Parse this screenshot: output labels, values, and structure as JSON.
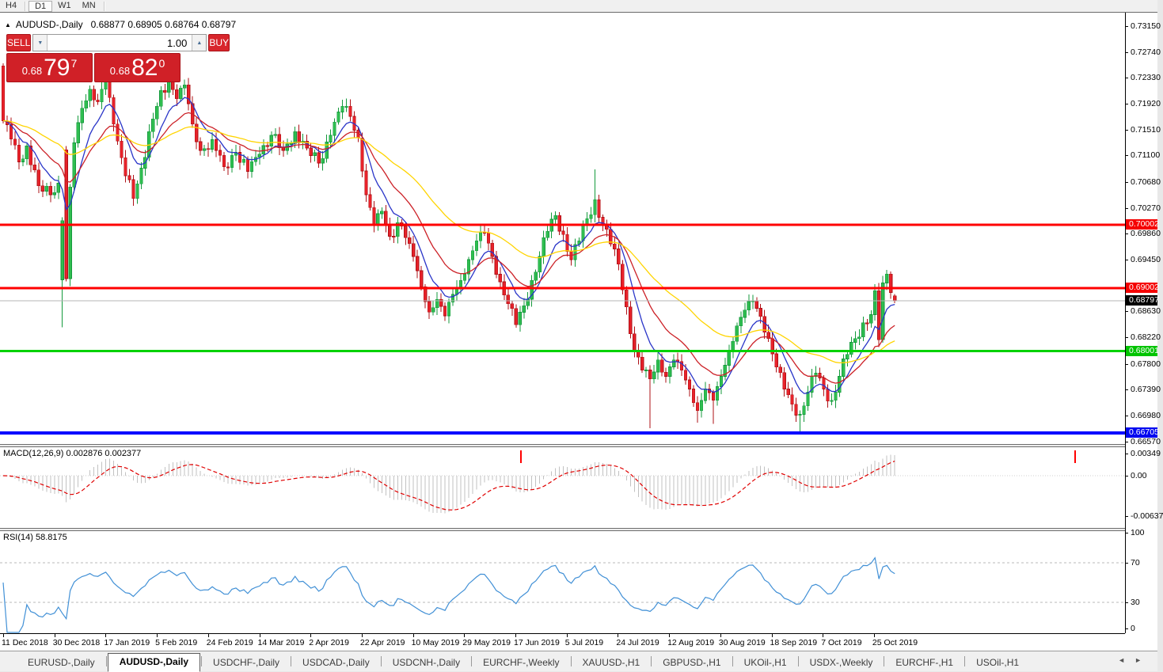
{
  "toolbar": {
    "timeframes": [
      "H4",
      "D1",
      "W1",
      "MN"
    ],
    "active_timeframe": "D1"
  },
  "icons": {
    "collapse": "▲",
    "spinner_down": "▼",
    "spinner_up": "▲",
    "tab_scroll_left": "◄",
    "tab_scroll_right": "►"
  },
  "chart": {
    "title_symbol": "AUDUSD-,Daily",
    "title_ohlc": "0.68877 0.68905 0.68764 0.68797",
    "trade_panel": {
      "sell_label": "SELL",
      "buy_label": "BUY",
      "volume": "1.00",
      "sell_price": {
        "small": "0.68",
        "big": "79",
        "sup": "7"
      },
      "buy_price": {
        "small": "0.68",
        "big": "82",
        "sup": "0"
      }
    },
    "levels": [
      {
        "price": 0.70002,
        "label": "0.70002",
        "color": "#ff0000",
        "box": "#f50000",
        "width": 3
      },
      {
        "price": 0.69002,
        "label": "0.69002",
        "color": "#ff0000",
        "box": "#f50000",
        "width": 3
      },
      {
        "price": 0.68797,
        "label": "0.68797",
        "color": "#b5b5b5",
        "box": "#000000",
        "width": 1
      },
      {
        "price": 0.68001,
        "label": "0.68001",
        "color": "#00d200",
        "box": "#00c400",
        "width": 3
      },
      {
        "price": 0.66705,
        "label": "0.66705",
        "color": "#0000ff",
        "box": "#0008f0",
        "width": 4
      }
    ],
    "price_axis_labels": [
      "0.73150",
      "0.72740",
      "0.72330",
      "0.71920",
      "0.71510",
      "0.71100",
      "0.70680",
      "0.70270",
      "0.69860",
      "0.69450",
      "0.68630",
      "0.68220",
      "0.67800",
      "0.67390",
      "0.66980",
      "0.66570"
    ],
    "date_axis_labels": [
      "11 Dec 2018",
      "30 Dec 2018",
      "17 Jan 2019",
      "5 Feb 2019",
      "24 Feb 2019",
      "14 Mar 2019",
      "2 Apr 2019",
      "22 Apr 2019",
      "10 May 2019",
      "29 May 2019",
      "17 Jun 2019",
      "5 Jul 2019",
      "24 Jul 2019",
      "12 Aug 2019",
      "30 Aug 2019",
      "18 Sep 2019",
      "7 Oct 2019",
      "25 Oct 2019"
    ]
  },
  "macd": {
    "label": "MACD(12,26,9) 0.002876 0.002377",
    "axis_labels": [
      "0.00349",
      "0.00",
      "-0.00637"
    ],
    "marks_x": [
      658,
      1358
    ]
  },
  "rsi": {
    "label": "RSI(14) 58.8175",
    "axis_labels": [
      "100",
      "70",
      "30",
      "0"
    ]
  },
  "tabs": {
    "items": [
      "EURUSD-,Daily",
      "AUDUSD-,Daily",
      "USDCHF-,Daily",
      "USDCAD-,Daily",
      "USDCNH-,Daily",
      "EURCHF-,Weekly",
      "XAUUSD-,H1",
      "GBPUSD-,H1",
      "UKOil-,H1",
      "USDX-,Weekly",
      "EURCHF-,H1",
      "USOil-,H1"
    ],
    "active": "AUDUSD-,Daily"
  },
  "colors": {
    "bull": "#2fbe50",
    "bull_border": "#149a3c",
    "bear": "#e8222a",
    "bear_border": "#ae1016",
    "ma_fast": "#2a35c8",
    "ma_mid": "#cc2127",
    "ma_slow": "#ffd400",
    "macd_hist": "#c2c2c2",
    "macd_signal": "#e00000",
    "macd_mark": "#ff0000",
    "rsi_line": "#4190d6",
    "rsi_level": "#b9b9b9",
    "current_price_line": "#b5b5b5"
  },
  "chart_data": {
    "type": "candlestick",
    "symbol": "AUDUSD",
    "timeframe": "Daily",
    "candle_count": 227,
    "visible_price_range": [
      0.6657,
      0.7315
    ],
    "last_candle": {
      "open": 0.68877,
      "high": 0.68905,
      "low": 0.68764,
      "close": 0.68797
    },
    "close_anchors": [
      [
        0,
        0.7165
      ],
      [
        2,
        0.7136
      ],
      [
        4,
        0.71
      ],
      [
        6,
        0.7125
      ],
      [
        9,
        0.7062
      ],
      [
        12,
        0.7048
      ],
      [
        14,
        0.7066
      ],
      [
        15,
        0.7007
      ],
      [
        16,
        0.6915
      ],
      [
        17,
        0.706
      ],
      [
        18,
        0.713
      ],
      [
        19,
        0.7162
      ],
      [
        20,
        0.7185
      ],
      [
        22,
        0.7215
      ],
      [
        24,
        0.7195
      ],
      [
        26,
        0.7232
      ],
      [
        28,
        0.716
      ],
      [
        31,
        0.7078
      ],
      [
        33,
        0.7042
      ],
      [
        35,
        0.709
      ],
      [
        37,
        0.7148
      ],
      [
        39,
        0.7188
      ],
      [
        42,
        0.7228
      ],
      [
        44,
        0.72
      ],
      [
        46,
        0.7222
      ],
      [
        48,
        0.716
      ],
      [
        50,
        0.7118
      ],
      [
        53,
        0.7135
      ],
      [
        56,
        0.7092
      ],
      [
        59,
        0.7115
      ],
      [
        62,
        0.7085
      ],
      [
        65,
        0.7112
      ],
      [
        68,
        0.7142
      ],
      [
        71,
        0.7118
      ],
      [
        74,
        0.7148
      ],
      [
        77,
        0.7122
      ],
      [
        80,
        0.7098
      ],
      [
        83,
        0.7142
      ],
      [
        86,
        0.7188
      ],
      [
        88,
        0.7172
      ],
      [
        90,
        0.7138
      ],
      [
        92,
        0.7048
      ],
      [
        94,
        0.7
      ],
      [
        96,
        0.7022
      ],
      [
        98,
        0.6982
      ],
      [
        101,
        0.6998
      ],
      [
        104,
        0.695
      ],
      [
        106,
        0.6902
      ],
      [
        108,
        0.6862
      ],
      [
        110,
        0.6882
      ],
      [
        112,
        0.6856
      ],
      [
        114,
        0.689
      ],
      [
        116,
        0.6912
      ],
      [
        118,
        0.6945
      ],
      [
        120,
        0.6975
      ],
      [
        122,
        0.6988
      ],
      [
        124,
        0.695
      ],
      [
        126,
        0.691
      ],
      [
        128,
        0.6875
      ],
      [
        130,
        0.6842
      ],
      [
        132,
        0.6872
      ],
      [
        134,
        0.6912
      ],
      [
        136,
        0.695
      ],
      [
        138,
        0.699
      ],
      [
        140,
        0.7015
      ],
      [
        142,
        0.6985
      ],
      [
        144,
        0.6945
      ],
      [
        146,
        0.6975
      ],
      [
        148,
        0.701
      ],
      [
        150,
        0.704
      ],
      [
        152,
        0.7
      ],
      [
        154,
        0.697
      ],
      [
        156,
        0.6938
      ],
      [
        158,
        0.687
      ],
      [
        160,
        0.68
      ],
      [
        162,
        0.677
      ],
      [
        164,
        0.6756
      ],
      [
        166,
        0.6786
      ],
      [
        168,
        0.676
      ],
      [
        170,
        0.6786
      ],
      [
        172,
        0.677
      ],
      [
        174,
        0.674
      ],
      [
        176,
        0.6706
      ],
      [
        178,
        0.674
      ],
      [
        180,
        0.6722
      ],
      [
        182,
        0.676
      ],
      [
        184,
        0.68
      ],
      [
        186,
        0.684
      ],
      [
        188,
        0.6865
      ],
      [
        190,
        0.688
      ],
      [
        192,
        0.6855
      ],
      [
        194,
        0.682
      ],
      [
        196,
        0.6775
      ],
      [
        198,
        0.674
      ],
      [
        200,
        0.6716
      ],
      [
        202,
        0.67
      ],
      [
        204,
        0.6735
      ],
      [
        206,
        0.6765
      ],
      [
        208,
        0.674
      ],
      [
        210,
        0.6722
      ],
      [
        212,
        0.676
      ],
      [
        214,
        0.6795
      ],
      [
        216,
        0.682
      ],
      [
        218,
        0.6845
      ],
      [
        220,
        0.6858
      ],
      [
        221,
        0.6896
      ],
      [
        222,
        0.6818
      ],
      [
        223,
        0.6908
      ],
      [
        224,
        0.6922
      ],
      [
        225,
        0.6893
      ],
      [
        226,
        0.68797
      ]
    ],
    "candle_overrides": {
      "0": {
        "open": 0.7252
      },
      "15": {
        "open": 0.6913,
        "low": 0.6838,
        "high": 0.7012
      },
      "16": {
        "open": 0.7119,
        "high": 0.7125
      },
      "122": {
        "high": 0.7002
      },
      "150": {
        "high": 0.7088
      },
      "164": {
        "low": 0.6678
      },
      "176": {
        "low": 0.6687
      },
      "180": {
        "low": 0.6685
      },
      "202": {
        "low": 0.6671
      },
      "224": {
        "high": 0.6929
      },
      "226": {
        "open": 0.68877,
        "high": 0.68905,
        "low": 0.68764
      }
    },
    "indicators": {
      "moving_averages": [
        {
          "period": 8,
          "color_key": "ma_fast"
        },
        {
          "period": 18,
          "color_key": "ma_mid"
        },
        {
          "period": 45,
          "color_key": "ma_slow"
        }
      ],
      "macd": {
        "fast": 12,
        "slow": 26,
        "signal": 9,
        "current": [
          0.002876,
          0.002377
        ]
      },
      "rsi": {
        "period": 14,
        "current": 58.8175,
        "levels": [
          30,
          70
        ]
      }
    }
  }
}
